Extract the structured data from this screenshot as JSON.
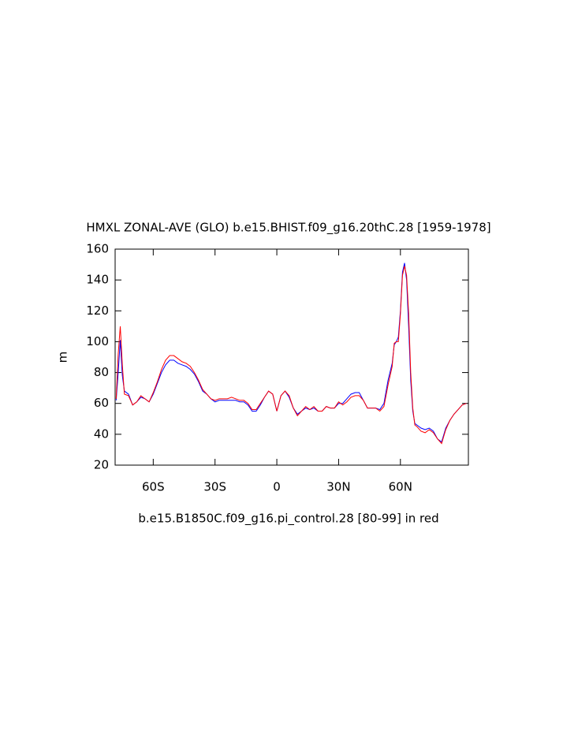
{
  "chart_data": {
    "type": "line",
    "title": "HMXL ZONAL-AVE (GLO) b.e15.BHIST.f09_g16.20thC.28 [1959-1978]",
    "x_label": "b.e15.B1850C.f09_g16.pi_control.28 [80-99] in red",
    "y_label": "m",
    "x": [
      -78,
      -77,
      -76,
      -75,
      -74,
      -72,
      -70,
      -68,
      -66,
      -64,
      -62,
      -60,
      -58,
      -56,
      -54,
      -52,
      -50,
      -48,
      -46,
      -44,
      -42,
      -40,
      -38,
      -36,
      -34,
      -32,
      -30,
      -28,
      -26,
      -24,
      -22,
      -20,
      -18,
      -16,
      -14,
      -12,
      -10,
      -8,
      -6,
      -4,
      -2,
      0,
      2,
      4,
      6,
      8,
      10,
      12,
      14,
      16,
      18,
      20,
      22,
      24,
      26,
      28,
      30,
      32,
      34,
      36,
      38,
      40,
      42,
      44,
      46,
      48,
      50,
      52,
      54,
      56,
      57,
      58,
      59,
      60,
      61,
      62,
      63,
      64,
      65,
      66,
      67,
      68,
      70,
      72,
      74,
      76,
      78,
      80,
      82,
      84,
      86,
      88,
      90,
      92
    ],
    "series": [
      {
        "color": "#0000ff",
        "values": [
          62,
          80,
          101,
          78,
          68,
          66,
          59,
          61,
          64,
          63,
          61,
          66,
          73,
          80,
          85,
          88,
          88,
          86,
          85,
          84,
          82,
          79,
          74,
          68,
          66,
          63,
          61,
          62,
          62,
          62,
          62,
          62,
          61,
          61,
          59,
          55,
          55,
          59,
          64,
          68,
          66,
          55,
          65,
          68,
          64,
          57,
          53,
          55,
          57,
          56,
          57,
          55,
          55,
          58,
          57,
          57,
          60,
          60,
          63,
          66,
          67,
          67,
          62,
          57,
          57,
          57,
          56,
          60,
          75,
          86,
          98,
          100,
          103,
          120,
          145,
          151,
          140,
          110,
          75,
          55,
          47,
          46,
          44,
          43,
          44,
          42,
          37,
          35,
          44,
          49,
          53,
          56,
          59,
          60
        ]
      },
      {
        "color": "#ff0000",
        "values": [
          63,
          92,
          110,
          85,
          66,
          65,
          59,
          61,
          65,
          63,
          61,
          67,
          74,
          82,
          88,
          91,
          91,
          89,
          87,
          86,
          84,
          80,
          75,
          69,
          66,
          63,
          62,
          63,
          63,
          63,
          64,
          63,
          62,
          62,
          60,
          56,
          56,
          60,
          64,
          68,
          66,
          55,
          65,
          68,
          65,
          57,
          52,
          55,
          58,
          56,
          58,
          55,
          55,
          58,
          57,
          57,
          61,
          59,
          61,
          64,
          65,
          65,
          62,
          57,
          57,
          57,
          55,
          58,
          72,
          84,
          99,
          100,
          100,
          118,
          143,
          149,
          143,
          118,
          80,
          57,
          46,
          45,
          42,
          41,
          43,
          41,
          37,
          34,
          43,
          49,
          53,
          56,
          59,
          60
        ]
      }
    ],
    "xlim": [
      -78.5,
      93
    ],
    "xticks": [
      {
        "value": -60,
        "label": "60S"
      },
      {
        "value": -30,
        "label": "30S"
      },
      0,
      {
        "value": 30,
        "label": "30N"
      },
      {
        "value": 60,
        "label": "60N"
      }
    ],
    "ylim": [
      20,
      160
    ],
    "yticks": [
      20,
      40,
      60,
      80,
      100,
      120,
      140,
      160
    ]
  }
}
